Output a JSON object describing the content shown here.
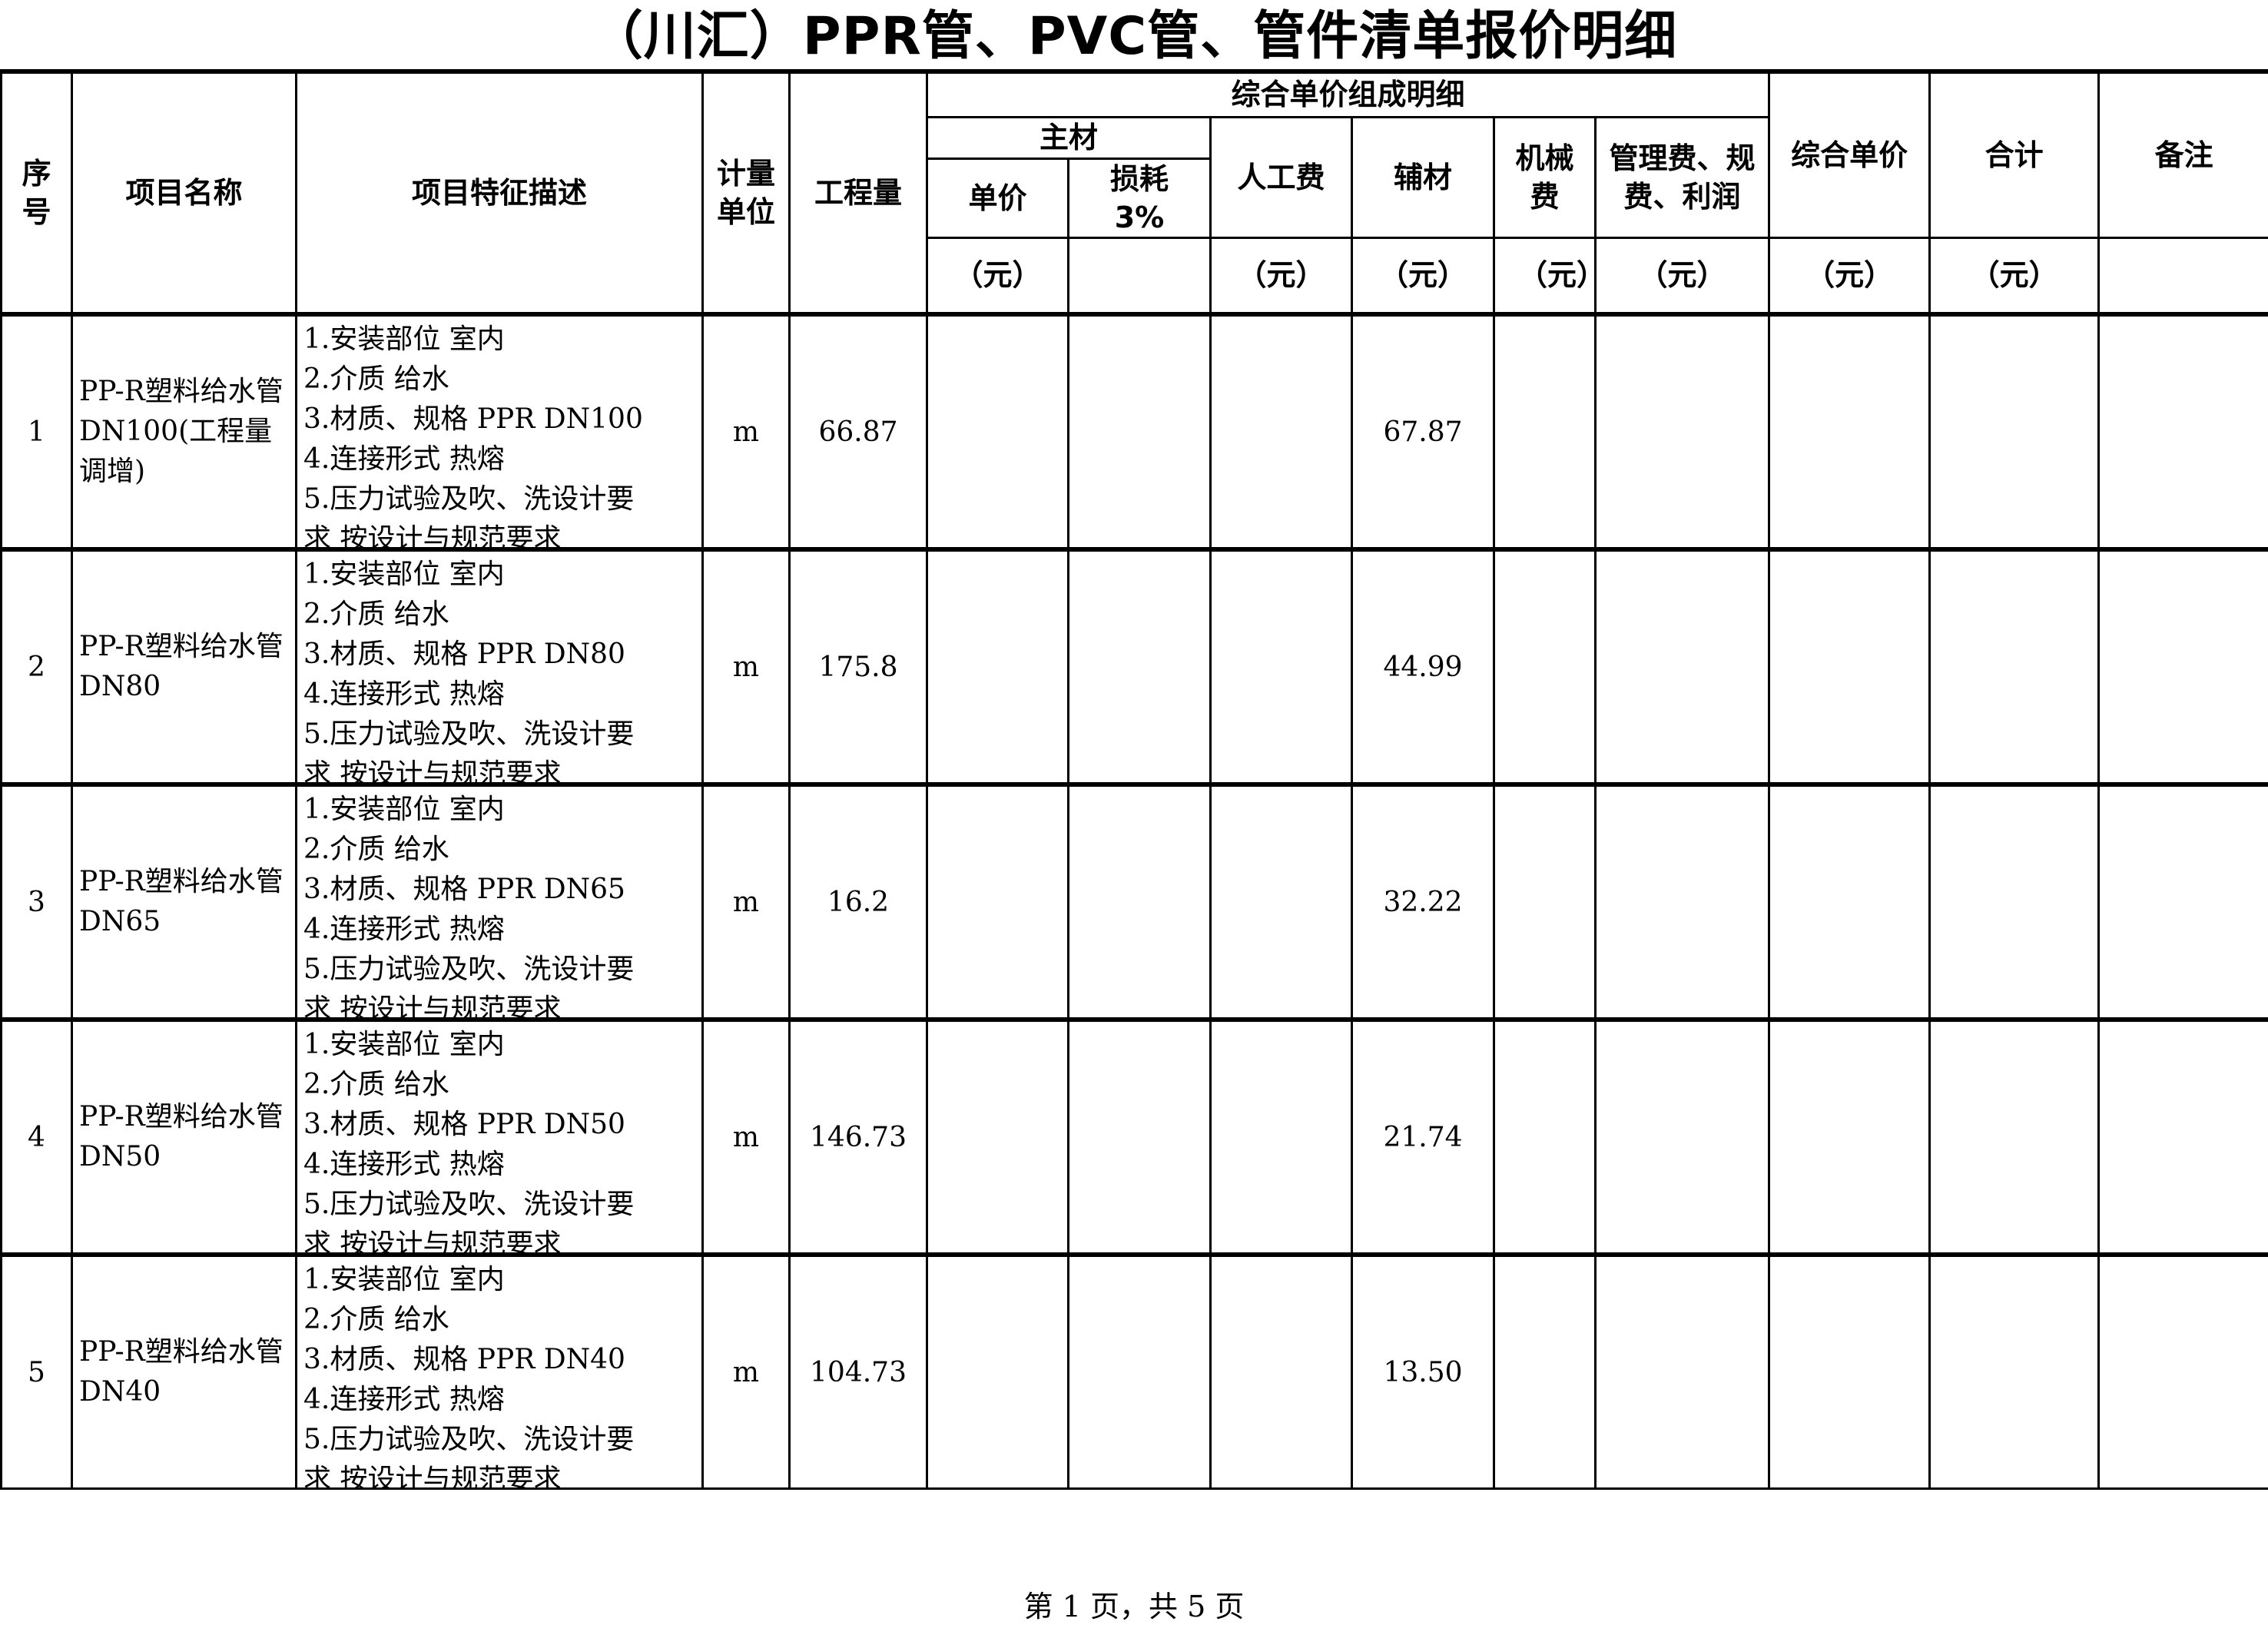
{
  "title": "（川汇）PPR管、PVC管、管件清单报价明细",
  "header": {
    "seq": "序号",
    "name": "项目名称",
    "desc": "项目特征描述",
    "unit": "计量单位",
    "qty": "工程量",
    "group": "综合单价组成明细",
    "main_material": "主材",
    "unit_price": "单价",
    "loss": "损耗3%",
    "labor": "人工费",
    "aux": "辅材",
    "machine": "机械费",
    "mgmt": "管理费、规费、利润",
    "comp_price": "综合单价",
    "total": "合计",
    "remark": "备注",
    "yuan": "（元）"
  },
  "rows": [
    {
      "seq": "1",
      "name": "PP-R塑料给水管DN100(工程量调增)",
      "desc": [
        "1.安装部位 室内",
        "2.介质 给水",
        "3.材质、规格 PPR DN100",
        "4.连接形式 热熔",
        "5.压力试验及吹、洗设计要",
        "求 按设计与规范要求"
      ],
      "unit": "m",
      "qty": "66.87",
      "aux": "67.87"
    },
    {
      "seq": "2",
      "name": "PP-R塑料给水管DN80",
      "desc": [
        "1.安装部位 室内",
        "2.介质 给水",
        "3.材质、规格 PPR DN80",
        "4.连接形式 热熔",
        "5.压力试验及吹、洗设计要",
        "求 按设计与规范要求"
      ],
      "unit": "m",
      "qty": "175.8",
      "aux": "44.99"
    },
    {
      "seq": "3",
      "name": "PP-R塑料给水管DN65",
      "desc": [
        "1.安装部位 室内",
        "2.介质 给水",
        "3.材质、规格 PPR DN65",
        "4.连接形式 热熔",
        "5.压力试验及吹、洗设计要",
        "求 按设计与规范要求"
      ],
      "unit": "m",
      "qty": "16.2",
      "aux": "32.22"
    },
    {
      "seq": "4",
      "name": "PP-R塑料给水管DN50",
      "desc": [
        "1.安装部位 室内",
        "2.介质 给水",
        "3.材质、规格 PPR DN50",
        "4.连接形式 热熔",
        "5.压力试验及吹、洗设计要",
        "求 按设计与规范要求"
      ],
      "unit": "m",
      "qty": "146.73",
      "aux": "21.74"
    },
    {
      "seq": "5",
      "name": "PP-R塑料给水管DN40",
      "desc": [
        "1.安装部位 室内",
        "2.介质 给水",
        "3.材质、规格 PPR DN40",
        "4.连接形式 热熔",
        "5.压力试验及吹、洗设计要",
        "求 按设计与规范要求"
      ],
      "unit": "m",
      "qty": "104.73",
      "aux": "13.50"
    }
  ],
  "footer": "第 1 页，共 5 页"
}
